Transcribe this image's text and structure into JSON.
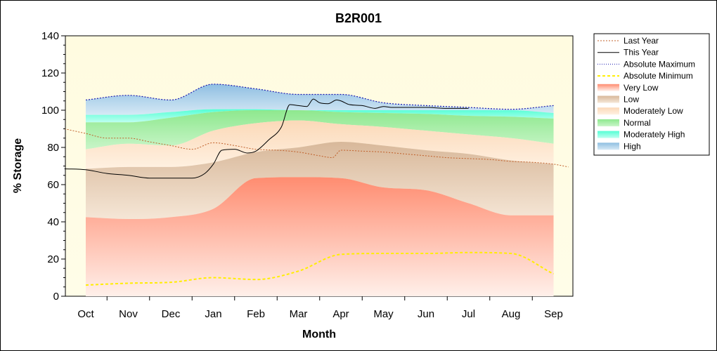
{
  "chart_data": {
    "type": "area",
    "title": "B2R001",
    "xlabel": "Month",
    "ylabel": "% Storage",
    "ylim": [
      0,
      140
    ],
    "yticks": [
      0,
      20,
      40,
      60,
      80,
      100,
      120,
      140
    ],
    "categories": [
      "Oct",
      "Nov",
      "Dec",
      "Jan",
      "Feb",
      "Mar",
      "Apr",
      "May",
      "Jun",
      "Jul",
      "Aug",
      "Sep"
    ],
    "grid": false,
    "legend_position": "right",
    "bands": {
      "x": [
        "Oct",
        "Nov",
        "Dec",
        "Jan",
        "Feb",
        "Mar",
        "Apr",
        "May",
        "Jun",
        "Jul",
        "Aug",
        "Sep"
      ],
      "very_low_top": [
        42.5,
        41.5,
        42.5,
        47,
        63.5,
        64,
        63.5,
        58.5,
        57,
        50,
        43.5,
        43.5
      ],
      "low_top": [
        68.5,
        69.5,
        69.5,
        72,
        77.5,
        80,
        83,
        81,
        78.5,
        76.5,
        73,
        71
      ],
      "moderately_low_top": [
        79,
        82,
        81,
        89,
        93,
        94.5,
        92.5,
        91,
        89,
        87,
        85,
        82
      ],
      "normal_top": [
        93.5,
        93.5,
        96,
        99,
        100,
        100,
        99,
        98.5,
        98,
        97,
        96.5,
        95.5
      ],
      "moderately_high_top": [
        97.5,
        97.5,
        99,
        100.5,
        100.5,
        100,
        100,
        100,
        100,
        100,
        100,
        98.5
      ],
      "high_top": [
        105.5,
        108,
        105.5,
        114,
        111.5,
        108.5,
        108.5,
        104,
        102.5,
        101.5,
        100.5,
        102.5
      ]
    },
    "series": [
      {
        "name": "Last Year",
        "color": "#c0602a",
        "style": "dotted",
        "x": [
          -0.5,
          0,
          0.5,
          1,
          1.5,
          2,
          2.5,
          3,
          3.5,
          4,
          4.5,
          5,
          5.5,
          5.8,
          6,
          6.5,
          7,
          7.5,
          8,
          8.5,
          9,
          9.5,
          10,
          10.5,
          11,
          11.35
        ],
        "values": [
          90,
          87.5,
          85,
          85,
          83,
          81,
          79,
          82.5,
          81,
          79,
          78.5,
          77.5,
          75.5,
          74.5,
          78.5,
          78,
          77.5,
          76.5,
          75.5,
          74.5,
          74,
          73.5,
          72.5,
          72,
          71,
          69.5
        ]
      },
      {
        "name": "This Year",
        "color": "#000000",
        "style": "solid",
        "x": [
          -0.5,
          0,
          0.5,
          1,
          1.5,
          2,
          2.5,
          2.8,
          3,
          3.2,
          3.5,
          3.8,
          4,
          4.3,
          4.6,
          4.8,
          5,
          5.2,
          5.35,
          5.5,
          5.7,
          5.9,
          6,
          6.2,
          6.5,
          6.8,
          7,
          7.2,
          7.35,
          7.6,
          8,
          8.5,
          9
        ],
        "values": [
          68.5,
          68,
          66,
          65,
          63.5,
          63.5,
          63.5,
          66,
          71,
          78.5,
          79,
          77,
          78,
          84,
          91,
          103,
          102.5,
          102,
          106,
          104,
          103.5,
          105.5,
          105,
          103,
          102.5,
          101,
          102,
          101.5,
          101.5,
          101.5,
          101.5,
          101,
          101
        ]
      },
      {
        "name": "Absolute Maximum",
        "color": "#1b1bb0",
        "style": "dotted",
        "x": [
          0,
          1,
          2,
          3,
          4,
          5,
          6,
          7,
          8,
          9,
          10,
          11
        ],
        "values": [
          105.5,
          108,
          105.5,
          114,
          111.5,
          108.5,
          108.5,
          104,
          102.5,
          101.5,
          100.5,
          102.5
        ]
      },
      {
        "name": "Absolute Minimum",
        "color": "#ffee00",
        "style": "dashed",
        "x": [
          0,
          1,
          2,
          3,
          4,
          5,
          6,
          7,
          8,
          9,
          10,
          11
        ],
        "values": [
          6,
          7,
          7.5,
          10,
          9,
          13.5,
          22.5,
          23,
          23,
          23.5,
          23,
          12
        ]
      }
    ],
    "legend": [
      {
        "label": "Last Year",
        "kind": "line",
        "color": "#c0602a",
        "dash": "2,2"
      },
      {
        "label": "This Year",
        "kind": "line",
        "color": "#000000",
        "dash": ""
      },
      {
        "label": "Absolute Maximum",
        "kind": "line",
        "color": "#1b1bb0",
        "dash": "1,2"
      },
      {
        "label": "Absolute Minimum",
        "kind": "line",
        "color": "#ffee00",
        "dash": "4,3"
      },
      {
        "label": "Very Low",
        "kind": "box",
        "color": "#ff9a80"
      },
      {
        "label": "Low",
        "kind": "box",
        "color": "#c9ab8e"
      },
      {
        "label": "Moderately Low",
        "kind": "box",
        "color": "#fde2c6"
      },
      {
        "label": "Normal",
        "kind": "box",
        "color": "#99ee99"
      },
      {
        "label": "Moderately High",
        "kind": "box",
        "color": "#66ffdd"
      },
      {
        "label": "High",
        "kind": "box",
        "color": "#9fc8e6"
      }
    ]
  }
}
